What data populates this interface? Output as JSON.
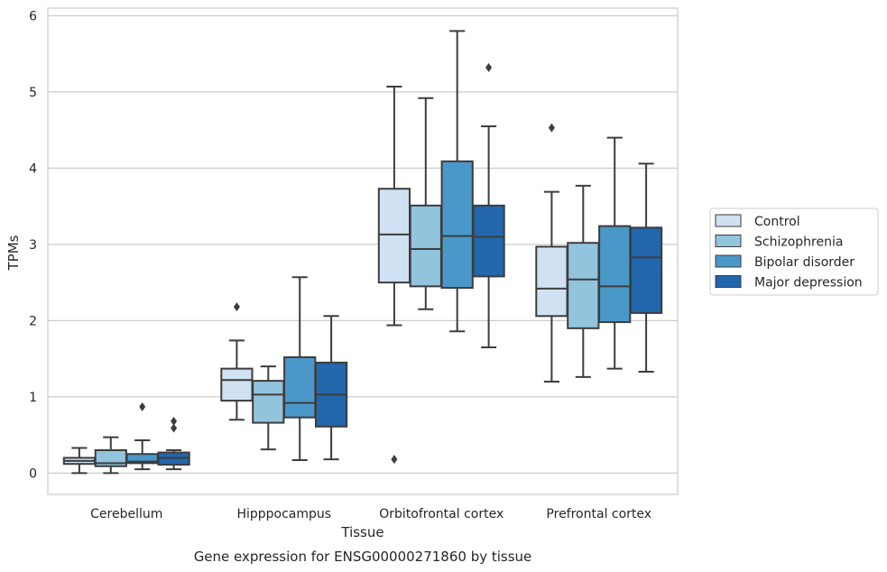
{
  "chart_data": {
    "type": "box",
    "xlabel": "Tissue",
    "ylabel": "TPMs",
    "caption": "Gene expression for ENSG00000271860 by tissue",
    "ylim": [
      -0.28,
      6.1
    ],
    "yticks": [
      0,
      1,
      2,
      3,
      4,
      5,
      6
    ],
    "grid": "horizontal",
    "legend_position": "right",
    "categories": [
      "Cerebellum",
      "Hipppocampus",
      "Orbitofrontal cortex",
      "Prefrontal cortex"
    ],
    "series": [
      {
        "name": "Control",
        "color": "#cfe1f2",
        "boxes": [
          {
            "whislo": 0.0,
            "q1": 0.12,
            "med": 0.16,
            "q3": 0.2,
            "whishi": 0.33,
            "fliers": []
          },
          {
            "whislo": 0.7,
            "q1": 0.95,
            "med": 1.22,
            "q3": 1.37,
            "whishi": 1.74,
            "fliers": [
              2.18
            ]
          },
          {
            "whislo": 1.94,
            "q1": 2.5,
            "med": 3.13,
            "q3": 3.73,
            "whishi": 5.07,
            "fliers": [
              0.18
            ]
          },
          {
            "whislo": 1.2,
            "q1": 2.06,
            "med": 2.42,
            "q3": 2.97,
            "whishi": 3.69,
            "fliers": [
              4.53
            ]
          }
        ]
      },
      {
        "name": "Schizophrenia",
        "color": "#93c4de",
        "boxes": [
          {
            "whislo": 0.0,
            "q1": 0.09,
            "med": 0.13,
            "q3": 0.3,
            "whishi": 0.47,
            "fliers": []
          },
          {
            "whislo": 0.31,
            "q1": 0.66,
            "med": 1.03,
            "q3": 1.21,
            "whishi": 1.4,
            "fliers": []
          },
          {
            "whislo": 2.15,
            "q1": 2.45,
            "med": 2.94,
            "q3": 3.51,
            "whishi": 4.92,
            "fliers": []
          },
          {
            "whislo": 1.26,
            "q1": 1.9,
            "med": 2.54,
            "q3": 3.02,
            "whishi": 3.77,
            "fliers": []
          }
        ]
      },
      {
        "name": "Bipolar disorder",
        "color": "#4a98c9",
        "boxes": [
          {
            "whislo": 0.05,
            "q1": 0.13,
            "med": 0.15,
            "q3": 0.25,
            "whishi": 0.43,
            "fliers": [
              0.87
            ]
          },
          {
            "whislo": 0.17,
            "q1": 0.73,
            "med": 0.92,
            "q3": 1.52,
            "whishi": 2.57,
            "fliers": []
          },
          {
            "whislo": 1.86,
            "q1": 2.43,
            "med": 3.11,
            "q3": 4.09,
            "whishi": 5.8,
            "fliers": []
          },
          {
            "whislo": 1.37,
            "q1": 1.98,
            "med": 2.45,
            "q3": 3.24,
            "whishi": 4.4,
            "fliers": []
          }
        ]
      },
      {
        "name": "Major depression",
        "color": "#2266ac",
        "boxes": [
          {
            "whislo": 0.05,
            "q1": 0.11,
            "med": 0.2,
            "q3": 0.27,
            "whishi": 0.3,
            "fliers": [
              0.59,
              0.68
            ]
          },
          {
            "whislo": 0.18,
            "q1": 0.61,
            "med": 1.03,
            "q3": 1.45,
            "whishi": 2.06,
            "fliers": []
          },
          {
            "whislo": 1.65,
            "q1": 2.58,
            "med": 3.1,
            "q3": 3.51,
            "whishi": 4.55,
            "fliers": [
              5.32
            ]
          },
          {
            "whislo": 1.33,
            "q1": 2.1,
            "med": 2.83,
            "q3": 3.22,
            "whishi": 4.06,
            "fliers": []
          }
        ]
      }
    ]
  }
}
